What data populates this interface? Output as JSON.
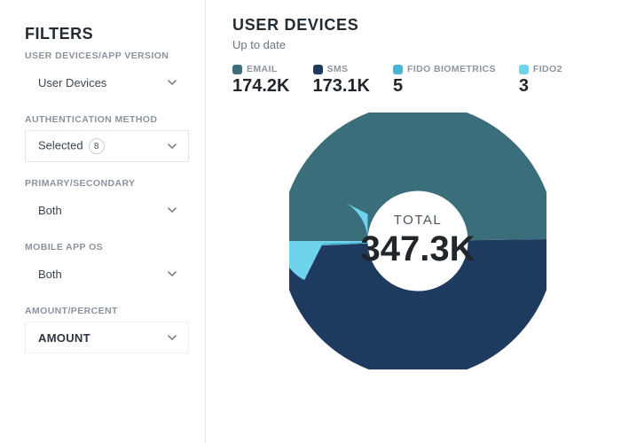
{
  "sidebar": {
    "title": "FILTERS",
    "groups": [
      {
        "label": "USER DEVICES/APP VERSION",
        "value": "User Devices",
        "style": "borderless"
      },
      {
        "label": "AUTHENTICATION METHOD",
        "value": "Selected",
        "badge": "8",
        "style": "outlined"
      },
      {
        "label": "PRIMARY/SECONDARY",
        "value": "Both",
        "style": "borderless"
      },
      {
        "label": "MOBILE APP OS",
        "value": "Both",
        "style": "borderless"
      },
      {
        "label": "AMOUNT/PERCENT",
        "value": "AMOUNT",
        "style": "mild",
        "bold": true
      }
    ]
  },
  "main": {
    "title": "USER DEVICES",
    "subtext": "Up to date",
    "total_label": "TOTAL",
    "total_value": "347.3K"
  },
  "chart": {
    "type": "donut",
    "background_color": "#ffffff",
    "donut_outer_radius": 45,
    "donut_inner_radius": 28,
    "stroke_width": 34,
    "series": [
      {
        "name": "EMAIL",
        "display": "174.2K",
        "value": 174200,
        "color": "#3a6e7a"
      },
      {
        "name": "SMS",
        "display": "173.1K",
        "value": 173100,
        "color": "#1f3a5f"
      },
      {
        "name": "FIDO BIOMETRICS",
        "display": "5",
        "value": 5,
        "color": "#4db3d4"
      },
      {
        "name": "FIDO2",
        "display": "3",
        "value": 3,
        "color": "#6fd3ee"
      }
    ],
    "title_fontsize": 18,
    "legend_name_fontsize": 10.5,
    "legend_value_fontsize": 20,
    "total_value_fontsize": 40,
    "label_color": "#8a949e",
    "text_color": "#20262c"
  },
  "colors": {
    "divider": "#e5e7eb",
    "chevron": "#7a8590"
  }
}
